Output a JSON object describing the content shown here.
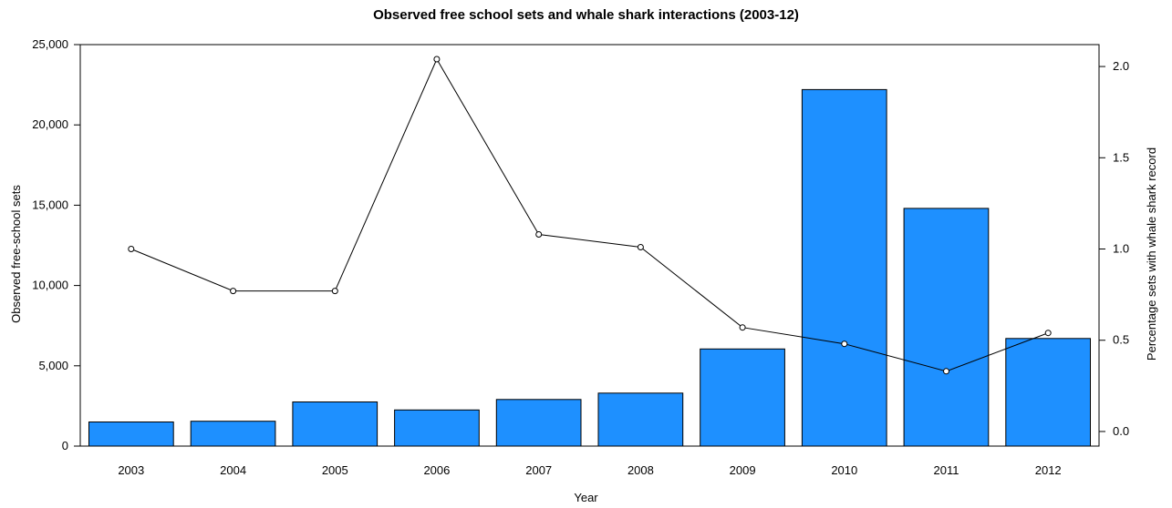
{
  "chart_data": {
    "type": "bar",
    "title": "Observed free school sets and whale shark interactions (2003-12)",
    "xlabel": "Year",
    "ylabel": "Observed free-school sets",
    "ylabel_right": "Percentage sets with whale shark record",
    "categories": [
      "2003",
      "2004",
      "2005",
      "2006",
      "2007",
      "2008",
      "2009",
      "2010",
      "2011",
      "2012"
    ],
    "series": [
      {
        "type": "bar",
        "axis": "left",
        "values": [
          1500,
          1550,
          2750,
          2250,
          2900,
          3300,
          6050,
          22200,
          14800,
          6700
        ],
        "color": "#1E90FF"
      },
      {
        "type": "line",
        "axis": "right",
        "values": [
          1.0,
          0.77,
          0.77,
          2.04,
          1.08,
          1.01,
          0.57,
          0.48,
          0.33,
          0.54
        ],
        "color": "#000000"
      }
    ],
    "ylim": [
      0,
      25000
    ],
    "yticks": [
      0,
      5000,
      10000,
      15000,
      20000,
      25000
    ],
    "ytick_labels": [
      "0",
      "5,000",
      "10,000",
      "15,000",
      "20,000",
      "25,000"
    ],
    "ylim_right": [
      -0.08,
      2.12
    ],
    "yticks_right": [
      0.0,
      0.5,
      1.0,
      1.5,
      2.0
    ],
    "ytick_labels_right": [
      "0.0",
      "0.5",
      "1.0",
      "1.5",
      "2.0"
    ],
    "grid": false,
    "legend": "none"
  }
}
